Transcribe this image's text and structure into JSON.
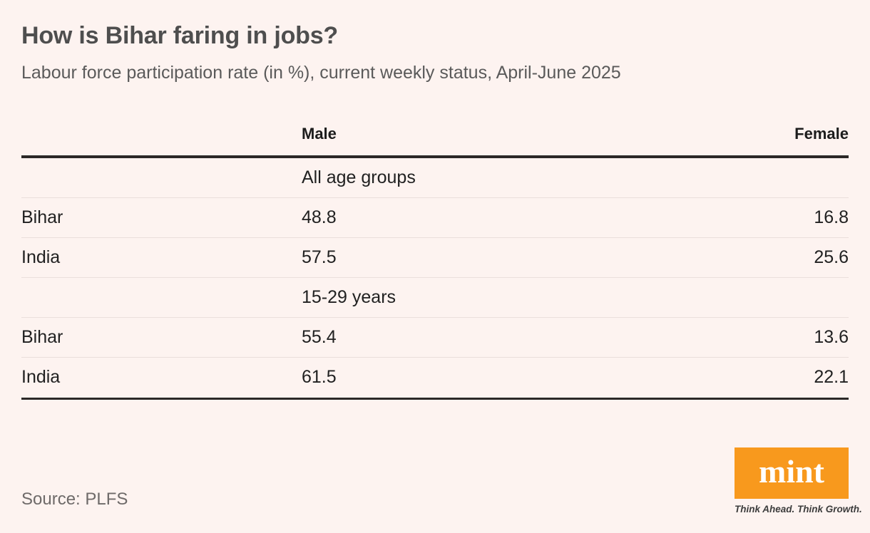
{
  "header": {
    "title": "How is Bihar faring in jobs?",
    "subtitle": "Labour force participation rate (in %), current weekly status, April-June 2025"
  },
  "chart_data": {
    "type": "table",
    "title": "How is Bihar faring in jobs?",
    "subtitle": "Labour force participation rate (in %), current weekly status, April-June 2025",
    "unit": "percent",
    "columns": [
      "",
      "Male",
      "Female"
    ],
    "sections": [
      {
        "group": "All age groups",
        "rows": [
          [
            "Bihar",
            48.8,
            16.8
          ],
          [
            "India",
            57.5,
            25.6
          ]
        ]
      },
      {
        "group": "15-29 years",
        "rows": [
          [
            "Bihar",
            55.4,
            13.6
          ],
          [
            "India",
            61.5,
            22.1
          ]
        ]
      }
    ],
    "source": "PLFS"
  },
  "footer": {
    "source_label": "Source: PLFS",
    "brand": {
      "word": "mint",
      "tagline": "Think Ahead. Think Growth.",
      "box_color": "#f8991d"
    }
  },
  "colors": {
    "background": "#fdf3f0",
    "title_text": "#4e4e4e",
    "subtitle_text": "#5a5a5a",
    "table_text": "#212121",
    "heavy_rule": "#2b2827",
    "light_rule": "#eadfdc",
    "brand_orange": "#f8991d"
  }
}
